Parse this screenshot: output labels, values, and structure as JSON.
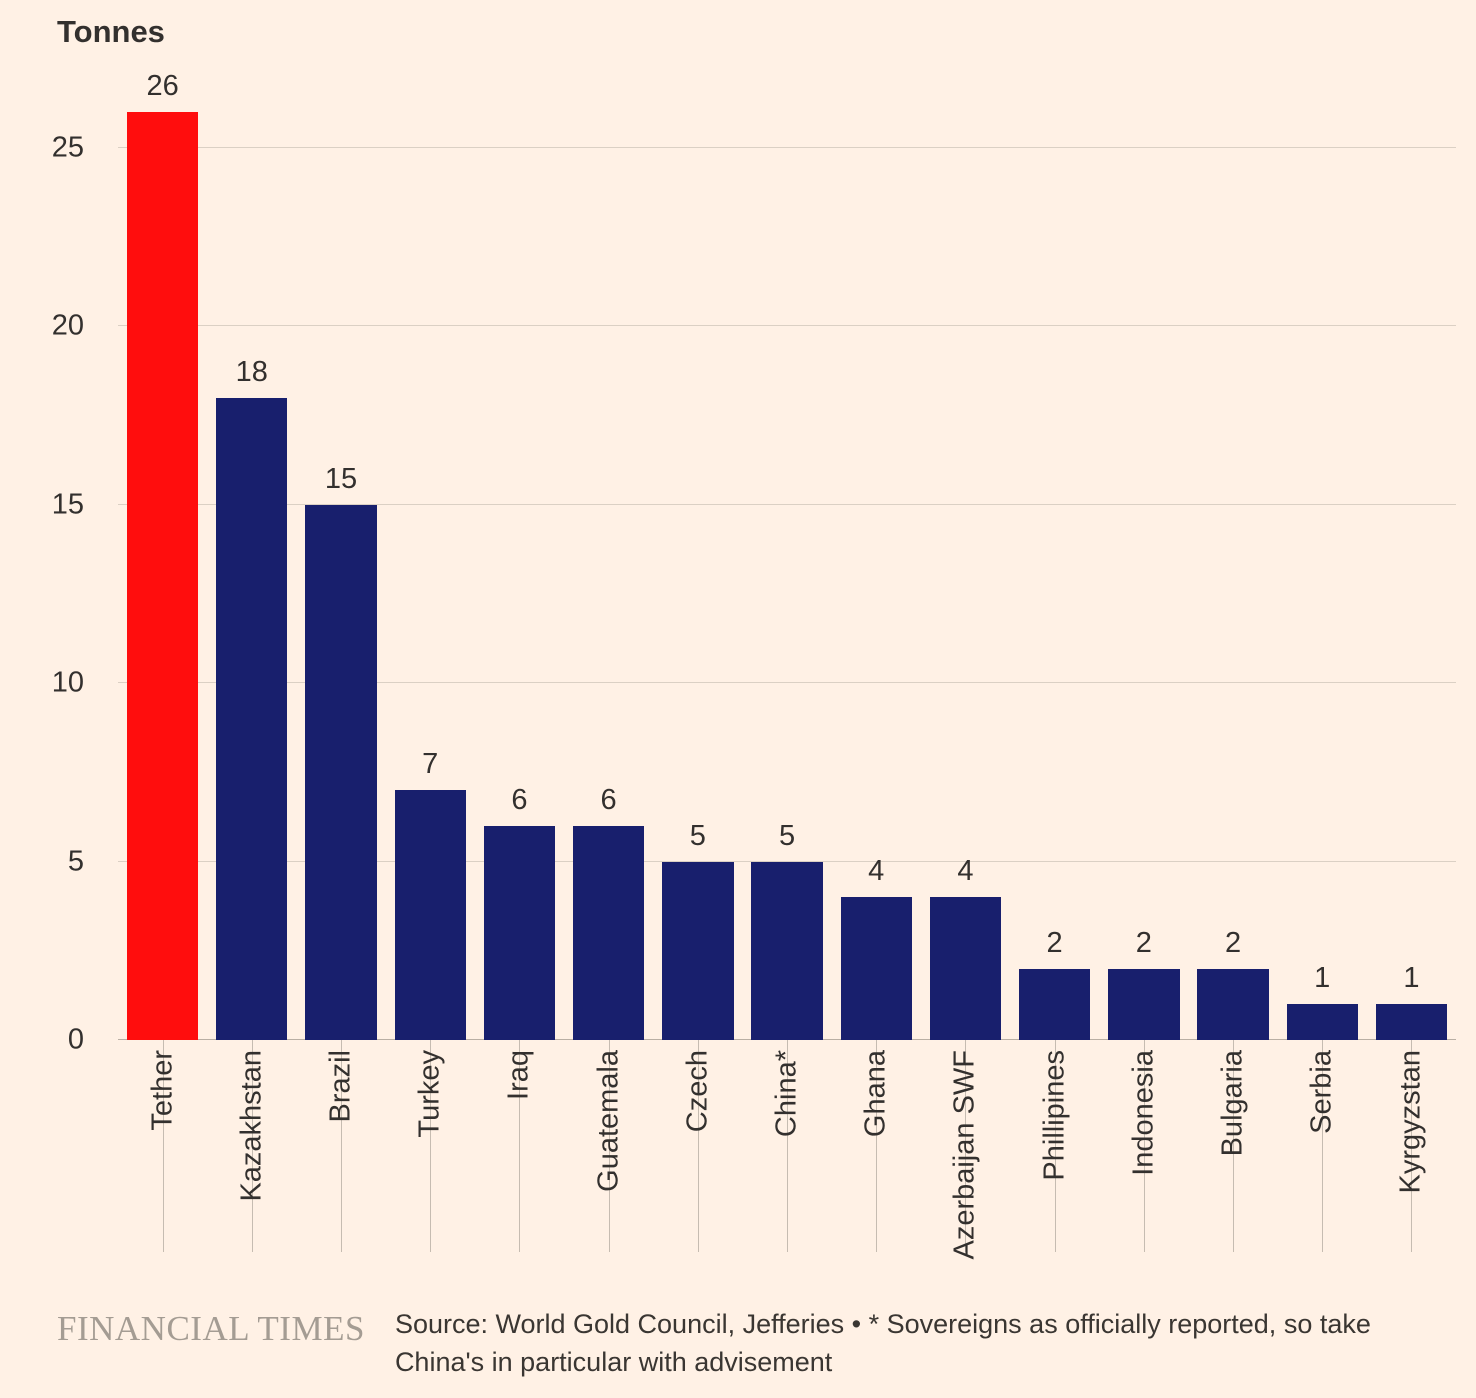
{
  "chart_data": {
    "type": "bar",
    "title": "",
    "ylabel": "Tonnes",
    "xlabel": "",
    "categories": [
      "Tether",
      "Kazakhstan",
      "Brazil",
      "Turkey",
      "Iraq",
      "Guatemala",
      "Czech",
      "China*",
      "Ghana",
      "Azerbaijan SWF",
      "Phillipines",
      "Indonesia",
      "Bulgaria",
      "Serbia",
      "Kyrgyzstan"
    ],
    "values": [
      26,
      18,
      15,
      7,
      6,
      6,
      5,
      5,
      4,
      4,
      2,
      2,
      2,
      1,
      1
    ],
    "highlight_index": 0,
    "ylim": [
      0,
      26
    ],
    "yticks": [
      0,
      5,
      10,
      15,
      20,
      25
    ],
    "grid": true,
    "legend": "none",
    "tick_label_rotation": 90
  },
  "footer": {
    "brand": "FINANCIAL TIMES",
    "source": "Source: World Gold Council, Jefferies • * Sovereigns as officially reported, so take China's in particular with advisement"
  },
  "colors": {
    "background": "#fff1e5",
    "bar": "#181f6d",
    "highlight": "#ff0d0d",
    "gridline": "#dbd0c4",
    "tickline": "#c6bcb1",
    "text": "#33302e",
    "brand_text": "#a49c93"
  }
}
